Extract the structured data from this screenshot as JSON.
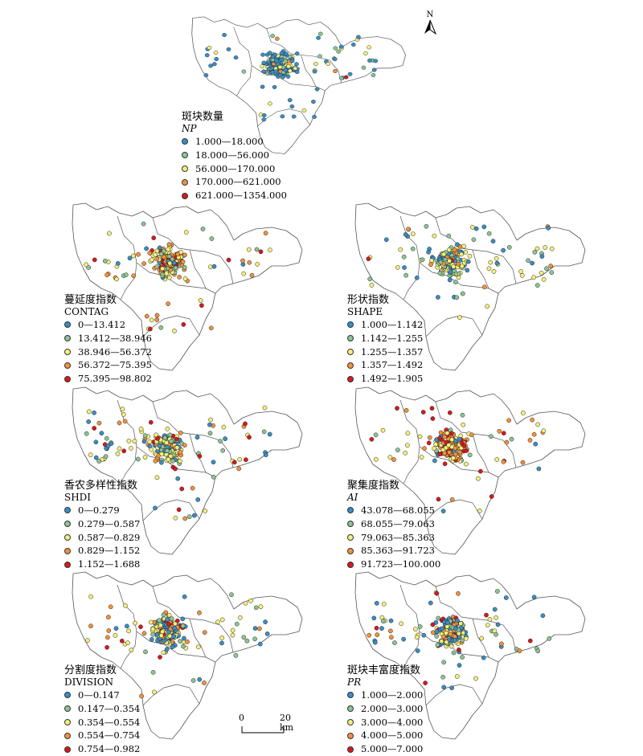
{
  "colors": [
    "#3a8ec5",
    "#8bc595",
    "#f5f07a",
    "#f2923c",
    "#d7191c"
  ],
  "north_label": "N",
  "scale": {
    "start": "0",
    "end": "20 km"
  },
  "panels": [
    {
      "title": "斑块数量",
      "subtitle": "NP",
      "subtitle_italic": true,
      "classes": [
        "1.000—18.000",
        "18.000—56.000",
        "56.000—170.000",
        "170.000—621.000",
        "621.000—1354.000"
      ],
      "color_mix": [
        0.58,
        0.14,
        0.22,
        0.05,
        0.01
      ]
    },
    {
      "title": "蔓延度指数",
      "subtitle": "CONTAG",
      "subtitle_italic": false,
      "classes": [
        "0—13.412",
        "13.412—38.946",
        "38.946—56.372",
        "56.372—75.395",
        "75.395—98.802"
      ],
      "color_mix": [
        0.08,
        0.12,
        0.35,
        0.3,
        0.15
      ]
    },
    {
      "title": "形状指数",
      "subtitle": "SHAPE",
      "subtitle_italic": false,
      "classes": [
        "1.000—1.142",
        "1.142—1.255",
        "1.255—1.357",
        "1.357—1.492",
        "1.492—1.905"
      ],
      "color_mix": [
        0.22,
        0.28,
        0.35,
        0.11,
        0.04
      ]
    },
    {
      "title": "香农多样性指数",
      "subtitle": "SHDI",
      "subtitle_italic": false,
      "classes": [
        "0—0.279",
        "0.279—0.587",
        "0.587—0.829",
        "0.829—1.152",
        "1.152—1.688"
      ],
      "color_mix": [
        0.22,
        0.2,
        0.33,
        0.17,
        0.08
      ]
    },
    {
      "title": "聚集度指数",
      "subtitle": "AI",
      "subtitle_italic": true,
      "classes": [
        "43.078—68.055",
        "68.055—79.063",
        "79.063—85.363",
        "85.363—91.723",
        "91.723—100.000"
      ],
      "color_mix": [
        0.06,
        0.1,
        0.28,
        0.32,
        0.24
      ]
    },
    {
      "title": "分割度指数",
      "subtitle": "DIVISION",
      "subtitle_italic": false,
      "classes": [
        "0—0.147",
        "0.147—0.354",
        "0.354—0.554",
        "0.554—0.754",
        "0.754—0.982"
      ],
      "color_mix": [
        0.25,
        0.18,
        0.35,
        0.14,
        0.08
      ]
    },
    {
      "title": "斑块丰富度指数",
      "subtitle": "PR",
      "subtitle_italic": true,
      "classes": [
        "1.000—2.000",
        "2.000—3.000",
        "3.000—4.000",
        "4.000—5.000",
        "5.000—7.000"
      ],
      "color_mix": [
        0.3,
        0.18,
        0.3,
        0.14,
        0.08
      ]
    }
  ]
}
